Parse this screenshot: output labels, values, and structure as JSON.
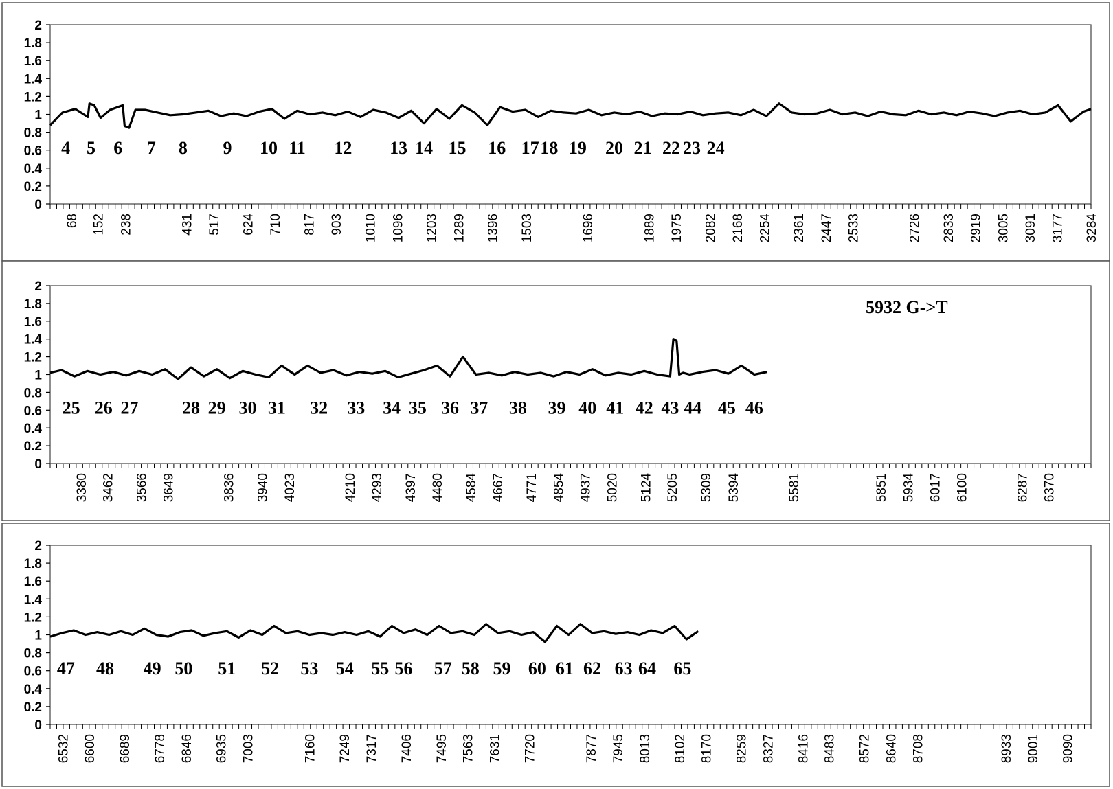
{
  "chart_data": [
    {
      "type": "line",
      "ylim": [
        0,
        2
      ],
      "yticks": [
        "0",
        "0.2",
        "0.4",
        "0.6",
        "0.8",
        "1",
        "1.2",
        "1.4",
        "1.6",
        "1.8",
        "2"
      ],
      "xlim": [
        1,
        3284
      ],
      "xticks": [
        "68",
        "152",
        "238",
        "431",
        "517",
        "624",
        "710",
        "817",
        "903",
        "1010",
        "1096",
        "1203",
        "1289",
        "1396",
        "1503",
        "1696",
        "1889",
        "1975",
        "2082",
        "2168",
        "2254",
        "2361",
        "2447",
        "2533",
        "2726",
        "2833",
        "2919",
        "3005",
        "3091",
        "3177",
        "3284"
      ],
      "exon_labels": [
        "4",
        "5",
        "6",
        "7",
        "8",
        "9",
        "10",
        "11",
        "12",
        "13",
        "14",
        "15",
        "16",
        "17",
        "18",
        "19",
        "20",
        "21",
        "22",
        "23",
        "24"
      ],
      "exon_label_x": [
        50,
        130,
        215,
        320,
        420,
        560,
        690,
        780,
        925,
        1100,
        1180,
        1285,
        1410,
        1515,
        1575,
        1665,
        1780,
        1870,
        1960,
        2025,
        2100
      ],
      "series": [
        {
          "x": [
            1,
            40,
            80,
            120,
            125,
            140,
            160,
            190,
            230,
            236,
            250,
            270,
            300,
            340,
            380,
            420,
            460,
            500,
            540,
            580,
            620,
            660,
            700,
            740,
            780,
            820,
            860,
            900,
            940,
            980,
            1020,
            1060,
            1100,
            1140,
            1180,
            1220,
            1260,
            1300,
            1340,
            1380,
            1420,
            1460,
            1500,
            1540,
            1580,
            1620,
            1660,
            1700,
            1740,
            1780,
            1820,
            1860,
            1900,
            1940,
            1980,
            2020,
            2060,
            2100,
            2140,
            2180,
            2220,
            2260,
            2300,
            2340,
            2380,
            2420,
            2460,
            2500,
            2540,
            2580,
            2620,
            2660,
            2700,
            2740,
            2780,
            2820,
            2860,
            2900,
            2940,
            2980,
            3020,
            3060,
            3100,
            3140,
            3180,
            3220,
            3260,
            3284
          ],
          "y": [
            0.88,
            1.02,
            1.06,
            0.97,
            1.12,
            1.1,
            0.96,
            1.05,
            1.1,
            0.87,
            0.85,
            1.05,
            1.05,
            1.02,
            0.99,
            1.0,
            1.02,
            1.04,
            0.98,
            1.01,
            0.98,
            1.03,
            1.06,
            0.95,
            1.04,
            1.0,
            1.02,
            0.99,
            1.03,
            0.97,
            1.05,
            1.02,
            0.96,
            1.04,
            0.9,
            1.06,
            0.95,
            1.1,
            1.02,
            0.88,
            1.08,
            1.03,
            1.05,
            0.97,
            1.04,
            1.02,
            1.01,
            1.05,
            0.99,
            1.02,
            1.0,
            1.03,
            0.98,
            1.01,
            1.0,
            1.03,
            0.99,
            1.01,
            1.02,
            0.99,
            1.05,
            0.98,
            1.12,
            1.02,
            1.0,
            1.01,
            1.05,
            1.0,
            1.02,
            0.98,
            1.03,
            1.0,
            0.99,
            1.04,
            1.0,
            1.02,
            0.99,
            1.03,
            1.01,
            0.98,
            1.02,
            1.04,
            1.0,
            1.02,
            1.1,
            0.92,
            1.03,
            1.06
          ]
        }
      ],
      "annotation": ""
    },
    {
      "type": "line",
      "ylim": [
        0,
        2
      ],
      "yticks": [
        "0",
        "0.2",
        "0.4",
        "0.6",
        "0.8",
        "1",
        "1.2",
        "1.4",
        "1.6",
        "1.8",
        "2"
      ],
      "xlim": [
        3285,
        6500
      ],
      "xticks": [
        "3380",
        "3462",
        "3566",
        "3649",
        "3836",
        "3940",
        "4023",
        "4210",
        "4293",
        "4397",
        "4480",
        "4584",
        "4667",
        "4771",
        "4854",
        "4937",
        "5020",
        "5124",
        "5205",
        "5309",
        "5394",
        "5581",
        "5851",
        "5934",
        "6017",
        "6100",
        "6287",
        "6370"
      ],
      "exon_labels": [
        "25",
        "26",
        "27",
        "28",
        "29",
        "30",
        "31",
        "32",
        "33",
        "34",
        "35",
        "36",
        "37",
        "38",
        "39",
        "40",
        "41",
        "42",
        "43",
        "44",
        "45",
        "46"
      ],
      "exon_label_x": [
        3350,
        3450,
        3530,
        3720,
        3800,
        3895,
        3985,
        4115,
        4230,
        4340,
        4420,
        4520,
        4610,
        4730,
        4850,
        4945,
        5030,
        5120,
        5200,
        5270,
        5375,
        5460
      ],
      "series": [
        {
          "x": [
            3285,
            3320,
            3360,
            3400,
            3440,
            3480,
            3520,
            3560,
            3600,
            3640,
            3680,
            3720,
            3760,
            3800,
            3840,
            3880,
            3920,
            3960,
            4000,
            4040,
            4080,
            4120,
            4160,
            4200,
            4240,
            4280,
            4320,
            4360,
            4400,
            4440,
            4480,
            4520,
            4560,
            4600,
            4640,
            4680,
            4720,
            4760,
            4800,
            4840,
            4880,
            4920,
            4960,
            5000,
            5040,
            5080,
            5120,
            5160,
            5200,
            5210,
            5220,
            5228,
            5240,
            5260,
            5300,
            5340,
            5380,
            5420,
            5460,
            5500
          ],
          "y": [
            1.02,
            1.05,
            0.98,
            1.04,
            1.0,
            1.03,
            0.99,
            1.04,
            1.0,
            1.06,
            0.95,
            1.08,
            0.98,
            1.06,
            0.96,
            1.04,
            1.0,
            0.97,
            1.1,
            1.0,
            1.1,
            1.02,
            1.05,
            0.99,
            1.03,
            1.01,
            1.04,
            0.97,
            1.01,
            1.05,
            1.1,
            0.98,
            1.2,
            1.0,
            1.02,
            0.99,
            1.03,
            1.0,
            1.02,
            0.98,
            1.03,
            1.0,
            1.06,
            0.99,
            1.02,
            1.0,
            1.04,
            1.0,
            0.98,
            1.4,
            1.38,
            1.0,
            1.02,
            1.0,
            1.03,
            1.05,
            1.01,
            1.1,
            1.0,
            1.03
          ]
        }
      ],
      "annotation": "5932 G->T"
    },
    {
      "type": "line",
      "ylim": [
        0,
        2
      ],
      "yticks": [
        "0",
        "0.2",
        "0.4",
        "0.6",
        "0.8",
        "1",
        "1.2",
        "1.4",
        "1.6",
        "1.8",
        "2"
      ],
      "xlim": [
        6500,
        9150
      ],
      "xticks": [
        "6532",
        "6600",
        "6689",
        "6778",
        "6846",
        "6935",
        "7003",
        "7160",
        "7249",
        "7317",
        "7406",
        "7495",
        "7563",
        "7631",
        "7720",
        "7877",
        "7945",
        "8013",
        "8102",
        "8170",
        "8259",
        "8327",
        "8416",
        "8483",
        "8572",
        "8640",
        "8708",
        "8933",
        "9001",
        "9090"
      ],
      "exon_labels": [
        "47",
        "48",
        "49",
        "50",
        "51",
        "52",
        "53",
        "54",
        "55",
        "56",
        "57",
        "58",
        "59",
        "60",
        "61",
        "62",
        "63",
        "64",
        "65"
      ],
      "exon_label_x": [
        6540,
        6640,
        6760,
        6840,
        6950,
        7060,
        7160,
        7250,
        7340,
        7400,
        7500,
        7570,
        7650,
        7740,
        7810,
        7880,
        7960,
        8020,
        8110
      ],
      "series": [
        {
          "x": [
            6500,
            6530,
            6560,
            6590,
            6620,
            6650,
            6680,
            6710,
            6740,
            6770,
            6800,
            6830,
            6860,
            6890,
            6920,
            6950,
            6980,
            7010,
            7040,
            7070,
            7100,
            7130,
            7160,
            7190,
            7220,
            7250,
            7280,
            7310,
            7340,
            7370,
            7400,
            7430,
            7460,
            7490,
            7520,
            7550,
            7580,
            7610,
            7640,
            7670,
            7700,
            7730,
            7760,
            7790,
            7820,
            7850,
            7880,
            7910,
            7940,
            7970,
            8000,
            8030,
            8060,
            8090,
            8120,
            8150
          ],
          "y": [
            0.98,
            1.02,
            1.05,
            1.0,
            1.03,
            1.0,
            1.04,
            1.0,
            1.07,
            1.0,
            0.98,
            1.03,
            1.05,
            0.99,
            1.02,
            1.04,
            0.97,
            1.05,
            1.0,
            1.1,
            1.02,
            1.04,
            1.0,
            1.02,
            1.0,
            1.03,
            1.0,
            1.04,
            0.98,
            1.1,
            1.02,
            1.06,
            1.0,
            1.1,
            1.02,
            1.04,
            1.0,
            1.12,
            1.02,
            1.04,
            1.0,
            1.03,
            0.92,
            1.1,
            1.0,
            1.12,
            1.02,
            1.04,
            1.01,
            1.03,
            1.0,
            1.05,
            1.02,
            1.1,
            0.95,
            1.04
          ]
        }
      ],
      "annotation": ""
    }
  ]
}
